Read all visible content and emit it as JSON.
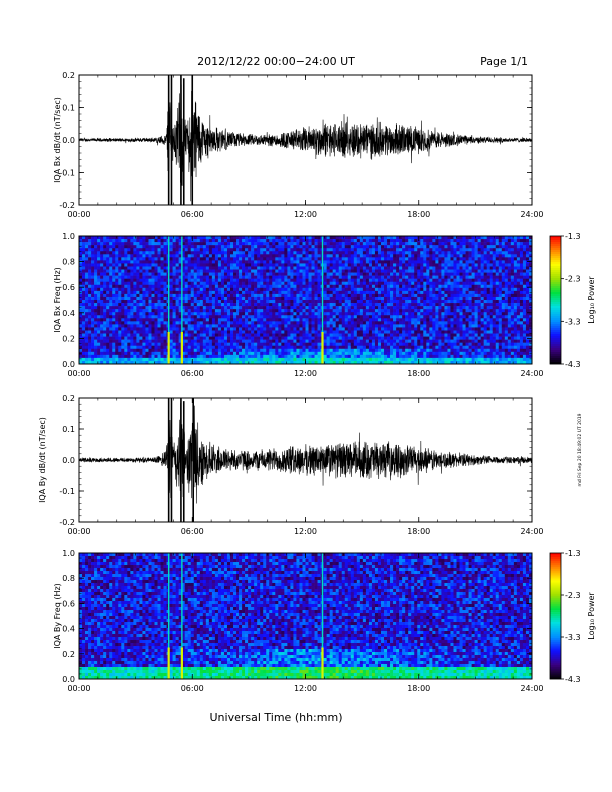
{
  "header": {
    "title": "2012/12/22  00:00−24:00 UT",
    "page": "Page 1/1",
    "side_stamp": "md Fri Sep 20 18:49:02 UT 2019"
  },
  "xaxis": {
    "label": "Universal Time (hh:mm)",
    "ticks": [
      "00:00",
      "06:00",
      "12:00",
      "18:00",
      "24:00"
    ],
    "range_hours": [
      0,
      24
    ]
  },
  "colorbar": {
    "label": "Log₁₀ Power",
    "ticks": [
      "-1.3",
      "-2.3",
      "-3.3",
      "-4.3"
    ],
    "range": [
      -4.3,
      -1.3
    ],
    "colors": [
      "#000000",
      "#3a0080",
      "#1010ff",
      "#0090ff",
      "#00e0e0",
      "#00e040",
      "#a0e000",
      "#ffff00",
      "#ff8000",
      "#ff0000"
    ]
  },
  "chart_data": [
    {
      "type": "line",
      "ylabel": "IQA Bx dB/dt (nT/sec)",
      "ylim": [
        -0.2,
        0.2
      ],
      "yticks": [
        "0.2",
        "0.1",
        "0.0",
        "-0.1",
        "-0.2"
      ],
      "series_color": "#000000",
      "envelope": {
        "hours": [
          0,
          2,
          4,
          4.6,
          4.8,
          5.0,
          5.4,
          5.7,
          6.0,
          6.5,
          7,
          8,
          9,
          10,
          11,
          12,
          13,
          14,
          15,
          16,
          17,
          18,
          19,
          20,
          21,
          22,
          23,
          24
        ],
        "amplitude": [
          0.006,
          0.006,
          0.008,
          0.02,
          0.2,
          0.05,
          0.2,
          0.05,
          0.2,
          0.08,
          0.05,
          0.03,
          0.02,
          0.02,
          0.03,
          0.045,
          0.06,
          0.06,
          0.065,
          0.06,
          0.055,
          0.045,
          0.03,
          0.02,
          0.012,
          0.01,
          0.008,
          0.007
        ]
      },
      "spikes": [
        {
          "hour": 4.75,
          "min": -0.2,
          "max": 0.2
        },
        {
          "hour": 4.9,
          "min": -0.2,
          "max": 0.2
        },
        {
          "hour": 5.4,
          "min": -0.2,
          "max": 0.2
        },
        {
          "hour": 5.55,
          "min": -0.2,
          "max": 0.19
        },
        {
          "hour": 6.0,
          "min": -0.2,
          "max": 0.2
        }
      ]
    },
    {
      "type": "heatmap",
      "ylabel": "IQA Bx Freq (Hz)",
      "ylim": [
        0,
        1.0
      ],
      "yticks": [
        "1.0",
        "0.8",
        "0.6",
        "0.4",
        "0.2",
        "0.0"
      ],
      "background_level": -3.7,
      "low_freq_band": {
        "max_freq": 0.05,
        "level": -3.2
      },
      "bright_lines_hours": [
        4.75,
        5.45,
        12.9
      ]
    },
    {
      "type": "line",
      "ylabel": "IQA By dB/dt (nT/sec)",
      "ylim": [
        -0.2,
        0.2
      ],
      "yticks": [
        "0.2",
        "0.1",
        "0.0",
        "-0.1",
        "-0.2"
      ],
      "series_color": "#000000",
      "envelope": {
        "hours": [
          0,
          2,
          4,
          4.6,
          4.8,
          5.0,
          5.4,
          5.7,
          6.0,
          6.5,
          7,
          8,
          9,
          10,
          11,
          12,
          13,
          14,
          15,
          16,
          17,
          18,
          19,
          20,
          21,
          22,
          23,
          24
        ],
        "amplitude": [
          0.008,
          0.008,
          0.01,
          0.03,
          0.2,
          0.06,
          0.2,
          0.06,
          0.2,
          0.09,
          0.06,
          0.04,
          0.035,
          0.04,
          0.05,
          0.055,
          0.06,
          0.065,
          0.07,
          0.065,
          0.06,
          0.05,
          0.035,
          0.025,
          0.018,
          0.014,
          0.012,
          0.01
        ]
      },
      "spikes": [
        {
          "hour": 4.75,
          "min": -0.2,
          "max": 0.2
        },
        {
          "hour": 4.9,
          "min": -0.2,
          "max": 0.2
        },
        {
          "hour": 5.4,
          "min": -0.2,
          "max": 0.2
        },
        {
          "hour": 5.55,
          "min": -0.2,
          "max": 0.19
        },
        {
          "hour": 6.05,
          "min": -0.2,
          "max": 0.2
        }
      ]
    },
    {
      "type": "heatmap",
      "ylabel": "IQA By Freq (Hz)",
      "ylim": [
        0,
        1.0
      ],
      "yticks": [
        "1.0",
        "0.8",
        "0.6",
        "0.4",
        "0.2",
        "0.0"
      ],
      "background_level": -3.7,
      "low_freq_band": {
        "max_freq": 0.1,
        "level": -2.9
      },
      "bright_lines_hours": [
        4.75,
        5.45,
        12.9
      ]
    }
  ]
}
